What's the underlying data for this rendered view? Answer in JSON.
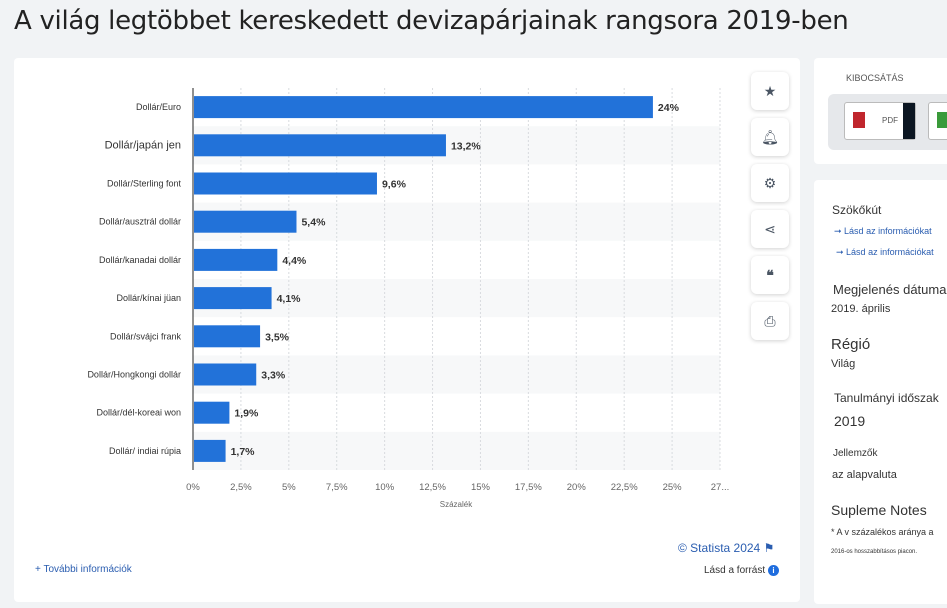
{
  "title": "A világ legtöbbet kereskedett devizapárjainak rangsora 2019-ben",
  "chart_data": {
    "type": "bar",
    "orientation": "horizontal",
    "categories": [
      "Dollár/Euro",
      "Dollár/japán jen",
      "Dollár/Sterling font",
      "Dollár/ausztrál dollár",
      "Dollár/kanadai dollár",
      "Dollár/kínai jüan",
      "Dollár/svájci frank",
      "Dollár/Hongkongi dollár",
      "Dollár/dél-koreai won",
      "Dollár/ indiai rúpia"
    ],
    "values": [
      24,
      13.2,
      9.6,
      5.4,
      4.4,
      4.1,
      3.5,
      3.3,
      1.9,
      1.7
    ],
    "data_labels": [
      "24%",
      "13,2%",
      "9,6%",
      "5,4%",
      "4,4%",
      "4,1%",
      "3,5%",
      "3,3%",
      "1,9%",
      "1,7%"
    ],
    "xlabel": "Százalék",
    "xticks": [
      "0%",
      "2,5%",
      "5%",
      "7,5%",
      "10%",
      "12,5%",
      "15%",
      "17,5%",
      "20%",
      "22,5%",
      "25%",
      "27..."
    ],
    "xlim": [
      0,
      27.5
    ],
    "grid": true,
    "bar_color": "#2272d9"
  },
  "actions": {
    "icons": [
      "star-icon",
      "bell-icon",
      "gear-icon",
      "share-icon",
      "quote-icon",
      "print-icon"
    ]
  },
  "footer": {
    "more": "+ További információk",
    "copyright": "© Statista 2024",
    "source": "Lásd a forrást"
  },
  "download": {
    "label": "KIBOCSÁTÁS",
    "pdf": "PDF"
  },
  "meta": {
    "source_h": "Szökőkút",
    "link1": "Lásd az információkat",
    "link2": "Lásd az információkat",
    "date_h": "Megjelenés dátuma",
    "date": "2019. április",
    "region_h": "Régió",
    "region": "Világ",
    "period_h": "Tanulmányi időszak",
    "period": "2019",
    "feat_h": "Jellemzők",
    "feat": "az alapvaluta",
    "notes_h": "Supleme Notes",
    "note1": "* A v százalékos aránya a",
    "note2": "2016-os hosszabbításos piacon."
  }
}
